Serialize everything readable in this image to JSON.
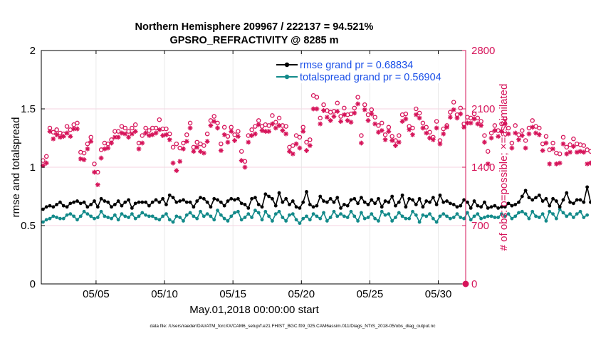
{
  "chart_data": {
    "type": "line",
    "title_line1": "Northern Hemisphere 209967 / 222137 = 94.521%",
    "title_line2": "GPSRO_REFRACTIVITY @ 8285 m",
    "xlabel": "May.01,2018 00:00:00 start",
    "ylabel_left": "rmse and totalspread",
    "ylabel_right": "# of obs: o=possible; ×=assimilated",
    "footnote": "data file: /Users/raeder/DAI/ATM_forcXX/CAM6_setup/f.e21.FHIST_BGC.f09_025.CAM6assim.011/Diags_NTrS_2018-05/obs_diag_output.nc",
    "x_range": [
      1,
      32
    ],
    "y_left_range": [
      0,
      2
    ],
    "y_right_range": [
      0,
      2800
    ],
    "x_ticks": [
      {
        "value": 5,
        "label": "05/05"
      },
      {
        "value": 10,
        "label": "05/10"
      },
      {
        "value": 15,
        "label": "05/15"
      },
      {
        "value": 20,
        "label": "05/20"
      },
      {
        "value": 25,
        "label": "05/25"
      },
      {
        "value": 30,
        "label": "05/30"
      }
    ],
    "y_left_ticks": [
      {
        "value": 0,
        "label": "0"
      },
      {
        "value": 0.5,
        "label": "0.5"
      },
      {
        "value": 1,
        "label": "1"
      },
      {
        "value": 1.5,
        "label": "1.5"
      },
      {
        "value": 2,
        "label": "2"
      }
    ],
    "y_right_ticks": [
      {
        "value": 0,
        "label": "0"
      },
      {
        "value": 700,
        "label": "700"
      },
      {
        "value": 1400,
        "label": "1400"
      },
      {
        "value": 2100,
        "label": "2100"
      },
      {
        "value": 2800,
        "label": "2800"
      }
    ],
    "legend": [
      {
        "label": "rmse grand pr = 0.68834",
        "color": "#000000",
        "text_color": "#1a4fe8"
      },
      {
        "label": "totalspread grand pr = 0.56904",
        "color": "#138a8a",
        "text_color": "#1a4fe8"
      }
    ],
    "colors": {
      "rmse": "#000000",
      "spread": "#138a8a",
      "obs": "#d6145a",
      "grid": "#d9d9d9"
    },
    "x_start": 1.125,
    "x_step": 0.25,
    "series": [
      {
        "name": "rmse",
        "axis": "left",
        "values": [
          0.64,
          0.66,
          0.67,
          0.66,
          0.68,
          0.7,
          0.67,
          0.66,
          0.69,
          0.7,
          0.71,
          0.69,
          0.7,
          0.66,
          0.68,
          0.71,
          0.66,
          0.73,
          0.71,
          0.7,
          0.66,
          0.68,
          0.71,
          0.67,
          0.7,
          0.72,
          0.65,
          0.69,
          0.7,
          0.7,
          0.7,
          0.67,
          0.7,
          0.72,
          0.7,
          0.73,
          0.68,
          0.76,
          0.74,
          0.7,
          0.71,
          0.72,
          0.7,
          0.7,
          0.66,
          0.71,
          0.74,
          0.73,
          0.7,
          0.66,
          0.73,
          0.72,
          0.7,
          0.67,
          0.71,
          0.73,
          0.72,
          0.73,
          0.69,
          0.68,
          0.65,
          0.73,
          0.74,
          0.68,
          0.66,
          0.77,
          0.75,
          0.73,
          0.67,
          0.78,
          0.7,
          0.73,
          0.68,
          0.71,
          0.66,
          0.65,
          0.7,
          0.79,
          0.68,
          0.66,
          0.67,
          0.75,
          0.71,
          0.7,
          0.73,
          0.7,
          0.74,
          0.65,
          0.68,
          0.67,
          0.72,
          0.73,
          0.69,
          0.74,
          0.7,
          0.68,
          0.72,
          0.69,
          0.73,
          0.66,
          0.71,
          0.7,
          0.75,
          0.67,
          0.7,
          0.76,
          0.66,
          0.73,
          0.72,
          0.68,
          0.73,
          0.66,
          0.71,
          0.7,
          0.74,
          0.68,
          0.76,
          0.7,
          0.71,
          0.69,
          0.68,
          0.66,
          0.67,
          0.72,
          0.7,
          0.65,
          0.71,
          0.67,
          0.66,
          0.7,
          0.65,
          0.66,
          0.67,
          0.65,
          0.66,
          0.66,
          0.69,
          0.67,
          0.68,
          0.7,
          0.75,
          0.8,
          0.74,
          0.72,
          0.74,
          0.76,
          0.71,
          0.73,
          0.67,
          0.73,
          0.71,
          0.66,
          0.72,
          0.78,
          0.7,
          0.69,
          0.72,
          0.72,
          0.7,
          0.83,
          0.7
        ]
      },
      {
        "name": "totalspread",
        "axis": "left",
        "values": [
          0.53,
          0.55,
          0.56,
          0.58,
          0.57,
          0.56,
          0.56,
          0.59,
          0.6,
          0.58,
          0.55,
          0.58,
          0.62,
          0.6,
          0.58,
          0.56,
          0.57,
          0.62,
          0.58,
          0.57,
          0.56,
          0.59,
          0.55,
          0.6,
          0.58,
          0.57,
          0.6,
          0.56,
          0.58,
          0.61,
          0.59,
          0.58,
          0.58,
          0.56,
          0.55,
          0.58,
          0.6,
          0.55,
          0.53,
          0.58,
          0.57,
          0.54,
          0.59,
          0.61,
          0.58,
          0.56,
          0.62,
          0.58,
          0.6,
          0.58,
          0.55,
          0.63,
          0.59,
          0.56,
          0.54,
          0.58,
          0.61,
          0.62,
          0.55,
          0.57,
          0.6,
          0.57,
          0.63,
          0.61,
          0.55,
          0.62,
          0.58,
          0.54,
          0.6,
          0.62,
          0.57,
          0.54,
          0.59,
          0.6,
          0.55,
          0.52,
          0.56,
          0.58,
          0.55,
          0.6,
          0.58,
          0.56,
          0.61,
          0.54,
          0.57,
          0.62,
          0.58,
          0.6,
          0.58,
          0.57,
          0.62,
          0.58,
          0.54,
          0.61,
          0.56,
          0.57,
          0.6,
          0.56,
          0.54,
          0.62,
          0.59,
          0.6,
          0.54,
          0.57,
          0.61,
          0.58,
          0.56,
          0.56,
          0.62,
          0.59,
          0.53,
          0.59,
          0.58,
          0.6,
          0.56,
          0.53,
          0.58,
          0.6,
          0.58,
          0.56,
          0.57,
          0.6,
          0.57,
          0.56,
          0.61,
          0.55,
          0.58,
          0.6,
          0.56,
          0.57,
          0.58,
          0.58,
          0.57,
          0.57,
          0.6,
          0.58,
          0.6,
          0.56,
          0.58,
          0.61,
          0.62,
          0.6,
          0.56,
          0.62,
          0.58,
          0.57,
          0.6,
          0.54,
          0.62,
          0.6,
          0.56,
          0.64,
          0.61,
          0.58,
          0.6,
          0.57,
          0.6,
          0.62,
          0.57,
          0.59
        ]
      },
      {
        "name": "possible",
        "axis": "right",
        "values": [
          1480,
          1530,
          1870,
          1820,
          1850,
          1810,
          1800,
          1890,
          1850,
          1910,
          1930,
          1580,
          1570,
          1680,
          1760,
          1440,
          1340,
          1610,
          1690,
          1680,
          1730,
          1830,
          1830,
          1890,
          1870,
          1830,
          1870,
          1910,
          1690,
          1780,
          1870,
          1840,
          1870,
          1870,
          1970,
          1860,
          1860,
          1800,
          1640,
          1680,
          1630,
          1690,
          1790,
          1930,
          1640,
          1700,
          1680,
          1660,
          1800,
          1960,
          2010,
          1930,
          1680,
          1880,
          1770,
          1880,
          1790,
          1830,
          1590,
          1470,
          1780,
          1850,
          1890,
          1960,
          1890,
          1910,
          1900,
          2020,
          1940,
          1990,
          1900,
          1890,
          1640,
          1660,
          1780,
          1760,
          1880,
          1700,
          1730,
          2260,
          2240,
          1990,
          2150,
          2080,
          2060,
          2070,
          2170,
          2010,
          2110,
          2030,
          2040,
          2110,
          2240,
          1780,
          2150,
          2030,
          2090,
          2000,
          1900,
          1930,
          1790,
          1880,
          1770,
          1720,
          1780,
          2030,
          2040,
          1890,
          1870,
          2100,
          2050,
          1930,
          1880,
          1820,
          1760,
          1950,
          1720,
          1860,
          1900,
          2060,
          2180,
          2030,
          2110,
          1920,
          2000,
          1990,
          2040,
          1990,
          1950,
          1780,
          1590,
          1810,
          1900,
          1840,
          1920,
          1980,
          1870,
          1690,
          1900,
          1790,
          1840,
          1720,
          1870,
          1960,
          1890,
          1870,
          1680,
          1770,
          1610,
          1690,
          1570,
          1560,
          1760,
          1640,
          1670,
          1740,
          1680,
          1670,
          1660,
          1610,
          1590,
          1560,
          1650
        ]
      },
      {
        "name": "assimilated",
        "axis": "right",
        "values": [
          1420,
          1450,
          1830,
          1740,
          1790,
          1760,
          1770,
          1810,
          1770,
          1860,
          1860,
          1500,
          1490,
          1620,
          1710,
          1340,
          1190,
          1510,
          1620,
          1630,
          1690,
          1760,
          1760,
          1810,
          1800,
          1760,
          1800,
          1830,
          1620,
          1690,
          1810,
          1780,
          1790,
          1810,
          1850,
          1780,
          1790,
          1730,
          1450,
          1360,
          1470,
          1620,
          1710,
          1870,
          1590,
          1640,
          1590,
          1570,
          1710,
          1900,
          1950,
          1870,
          1600,
          1790,
          1700,
          1830,
          1720,
          1770,
          1480,
          1400,
          1700,
          1780,
          1800,
          1910,
          1840,
          1830,
          1830,
          1920,
          1870,
          1900,
          1840,
          1800,
          1590,
          1560,
          1680,
          1630,
          1830,
          1600,
          1660,
          2100,
          2100,
          1920,
          2080,
          2000,
          1960,
          2010,
          2070,
          1950,
          2030,
          1960,
          1940,
          2050,
          2160,
          1690,
          2090,
          1960,
          2040,
          1920,
          1820,
          1840,
          1730,
          1830,
          1720,
          1660,
          1700,
          1950,
          1980,
          1850,
          1790,
          2030,
          1990,
          1870,
          1810,
          1750,
          1730,
          1870,
          1680,
          1800,
          1880,
          2000,
          2090,
          1990,
          2040,
          1880,
          1930,
          1930,
          1980,
          1920,
          1900,
          1700,
          1440,
          1750,
          1840,
          1770,
          1830,
          1920,
          1800,
          1630,
          1810,
          1730,
          1780,
          1630,
          1800,
          1880,
          1810,
          1790,
          1600,
          1690,
          1440,
          1620,
          1440,
          1450,
          1680,
          1560,
          1580,
          1650,
          1580,
          1590,
          1580,
          1440,
          1450,
          1450,
          1480
        ]
      }
    ]
  }
}
